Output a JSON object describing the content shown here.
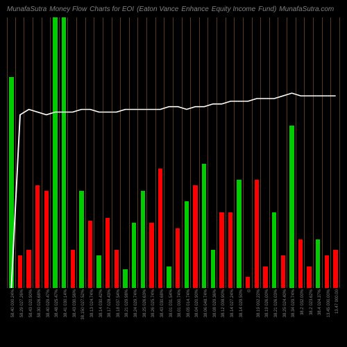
{
  "header": {
    "parts": [
      "MunafaSutra",
      "Money Flow",
      "Charts for EOI",
      "(Eaton Vance",
      "Enhance",
      "Equity Income",
      "Fund)",
      "MunafaSutra.com"
    ]
  },
  "chart": {
    "type": "bar",
    "background_color": "#000000",
    "grid_color": "#5a3a1a",
    "line_color": "#ffffff",
    "colors": {
      "green": "#00cc00",
      "red": "#ff0000"
    },
    "ymax": 100,
    "bars": [
      {
        "value": 78,
        "color": "green",
        "label": "58.40 000.24%"
      },
      {
        "value": 12,
        "color": "red",
        "label": "58.29 027.26%"
      },
      {
        "value": 14,
        "color": "red",
        "label": "58.43 020.90%"
      },
      {
        "value": 38,
        "color": "red",
        "label": "58.30 026.68%"
      },
      {
        "value": 36,
        "color": "red",
        "label": "38.40 029.47%"
      },
      {
        "value": 100,
        "color": "green",
        "label": "38.48 025.47%"
      },
      {
        "value": 100,
        "color": "green",
        "label": "38.41 030.14%"
      },
      {
        "value": 14,
        "color": "red",
        "label": "38.43 030.56%"
      },
      {
        "value": 36,
        "color": "green",
        "label": "38.150 027.52%"
      },
      {
        "value": 25,
        "color": "red",
        "label": "38.13 024.74%"
      },
      {
        "value": 12,
        "color": "green",
        "label": "38.14 030.42%"
      },
      {
        "value": 26,
        "color": "red",
        "label": "38.17 028.43%"
      },
      {
        "value": 14,
        "color": "red",
        "label": "38.18 037.54%"
      },
      {
        "value": 7,
        "color": "green",
        "label": "38.21 029.98%"
      },
      {
        "value": 24,
        "color": "green",
        "label": "38.24 029.74%"
      },
      {
        "value": 36,
        "color": "green",
        "label": "38.25 026.63%"
      },
      {
        "value": 24,
        "color": "red",
        "label": "38.26 025.74%"
      },
      {
        "value": 44,
        "color": "red",
        "label": "38.43 030.68%"
      },
      {
        "value": 8,
        "color": "green",
        "label": "38.01 031.54%"
      },
      {
        "value": 22,
        "color": "red",
        "label": "38.01 000.74%"
      },
      {
        "value": 32,
        "color": "green",
        "label": "38.05 014.74%"
      },
      {
        "value": 38,
        "color": "red",
        "label": "38.04 020.90%"
      },
      {
        "value": 46,
        "color": "green",
        "label": "38.06 048.74%"
      },
      {
        "value": 14,
        "color": "green",
        "label": "38.08 029.36%"
      },
      {
        "value": 28,
        "color": "red",
        "label": "38.12 008.90%"
      },
      {
        "value": 28,
        "color": "red",
        "label": "38.14 027.24%"
      },
      {
        "value": 40,
        "color": "green",
        "label": "38.14 029.50%"
      },
      {
        "value": 4,
        "color": "red",
        "label": "© "
      },
      {
        "value": 40,
        "color": "red",
        "label": "38.19 002.22%"
      },
      {
        "value": 8,
        "color": "red",
        "label": "38.19 026.00%"
      },
      {
        "value": 28,
        "color": "green",
        "label": "38.21 026.03%"
      },
      {
        "value": 12,
        "color": "red",
        "label": "38.25 024.40%"
      },
      {
        "value": 60,
        "color": "green",
        "label": "38.34 029.74%"
      },
      {
        "value": 18,
        "color": "red",
        "label": "38.2 032.00%"
      },
      {
        "value": 8,
        "color": "red",
        "label": "38.2 023.62%"
      },
      {
        "value": 18,
        "color": "green",
        "label": "38.4 024.37%"
      },
      {
        "value": 12,
        "color": "red",
        "label": "13.45 000.00%"
      },
      {
        "value": 14,
        "color": "red",
        "label": "13.47 000.00"
      }
    ],
    "line_points": [
      [
        0,
        100
      ],
      [
        1,
        36
      ],
      [
        2,
        34
      ],
      [
        3,
        35
      ],
      [
        4,
        36
      ],
      [
        5,
        35
      ],
      [
        6,
        35
      ],
      [
        7,
        35
      ],
      [
        8,
        34
      ],
      [
        9,
        34
      ],
      [
        10,
        35
      ],
      [
        11,
        35
      ],
      [
        12,
        35
      ],
      [
        13,
        34
      ],
      [
        14,
        34
      ],
      [
        15,
        34
      ],
      [
        16,
        34
      ],
      [
        17,
        34
      ],
      [
        18,
        33
      ],
      [
        19,
        33
      ],
      [
        20,
        34
      ],
      [
        21,
        33
      ],
      [
        22,
        33
      ],
      [
        23,
        32
      ],
      [
        24,
        32
      ],
      [
        25,
        31
      ],
      [
        26,
        31
      ],
      [
        27,
        31
      ],
      [
        28,
        30
      ],
      [
        29,
        30
      ],
      [
        30,
        30
      ],
      [
        31,
        29
      ],
      [
        32,
        28
      ],
      [
        33,
        29
      ],
      [
        34,
        29
      ],
      [
        35,
        29
      ],
      [
        36,
        29
      ],
      [
        37,
        29
      ]
    ]
  }
}
